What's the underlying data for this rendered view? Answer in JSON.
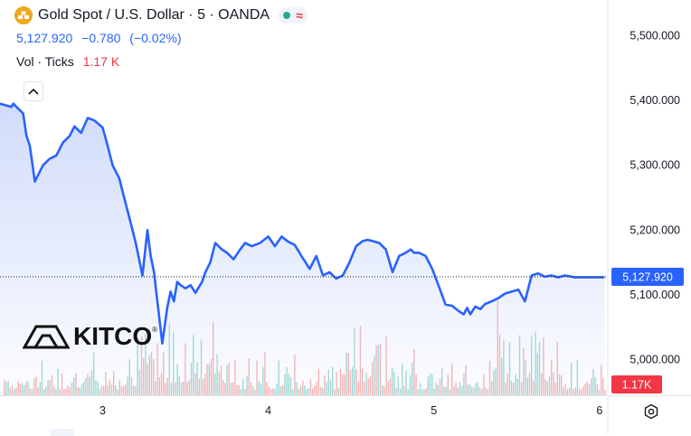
{
  "header": {
    "title": "Gold Spot / U.S. Dollar · 5 · OANDA",
    "icon": "gold-bars-icon",
    "status_icons": [
      "market-open-dot-icon",
      "delayed-wave-icon"
    ],
    "price": "5,127.920",
    "change": "−0.780",
    "change_pct": "(−0.02%)",
    "volume_label": "Vol · Ticks",
    "volume_value": "1.17 K"
  },
  "logo": {
    "text": "KITCO",
    "registered": "®"
  },
  "colors": {
    "line": "#2962ff",
    "area_top": "#c9d6fa",
    "vol_up": "#26a69a",
    "vol_down": "#ef5350",
    "price_tag": "#2962ff",
    "vol_tag": "#f23645"
  },
  "chart_data": {
    "type": "line",
    "title": "Gold Spot / U.S. Dollar · 5 · OANDA",
    "xlabel": "",
    "ylabel": "",
    "x_ticks": [
      "3",
      "4",
      "5",
      "6"
    ],
    "y_ticks": [
      "5,500.000",
      "5,400.000",
      "5,300.000",
      "5,200.000",
      "5,100.000",
      "5,000.000"
    ],
    "ylim": [
      4945,
      5555
    ],
    "xlim": [
      2.38,
      6.05
    ],
    "last_price_label": "5,127.920",
    "last_price": 5127.92,
    "volume_label": "1.17K",
    "grid": false,
    "series": [
      {
        "x": [
          2.38,
          2.45,
          2.46,
          2.52,
          2.54,
          2.56,
          2.59,
          2.64,
          2.68,
          2.72,
          2.76,
          2.8,
          2.83,
          2.87,
          2.91,
          2.95,
          3.0,
          3.03,
          3.06,
          3.1,
          3.13,
          3.17,
          3.2,
          3.24,
          3.27,
          3.29,
          3.31,
          3.33,
          3.36,
          3.39,
          3.41,
          3.43,
          3.45,
          3.47,
          3.5,
          3.53,
          3.56,
          3.6,
          3.62,
          3.65,
          3.68,
          3.72,
          3.75,
          3.79,
          3.83,
          3.86,
          3.9,
          3.95,
          4.0,
          4.04,
          4.08,
          4.12,
          4.16,
          4.2,
          4.25,
          4.29,
          4.33,
          4.37,
          4.41,
          4.45,
          4.49,
          4.53,
          4.57,
          4.6,
          4.63,
          4.67,
          4.71,
          4.75,
          4.79,
          4.83,
          4.86,
          4.88,
          4.91,
          4.95,
          4.99,
          5.03,
          5.07,
          5.11,
          5.15,
          5.18,
          5.2,
          5.22,
          5.25,
          5.28,
          5.31,
          5.35,
          5.39,
          5.43,
          5.47,
          5.51,
          5.55,
          5.59,
          5.63,
          5.67,
          5.71,
          5.75,
          5.79,
          5.83,
          5.85,
          5.88,
          5.91,
          5.94,
          5.97,
          6.0,
          6.03
        ],
        "y": [
          5395,
          5390,
          5395,
          5380,
          5345,
          5330,
          5275,
          5300,
          5310,
          5315,
          5335,
          5345,
          5360,
          5350,
          5373,
          5369,
          5358,
          5330,
          5300,
          5280,
          5250,
          5210,
          5180,
          5130,
          5200,
          5160,
          5135,
          5090,
          5025,
          5080,
          5105,
          5090,
          5120,
          5115,
          5110,
          5115,
          5103,
          5120,
          5135,
          5150,
          5180,
          5170,
          5165,
          5155,
          5170,
          5180,
          5175,
          5180,
          5190,
          5175,
          5190,
          5182,
          5177,
          5160,
          5140,
          5160,
          5130,
          5135,
          5125,
          5130,
          5150,
          5175,
          5183,
          5185,
          5183,
          5180,
          5170,
          5135,
          5160,
          5165,
          5170,
          5165,
          5165,
          5160,
          5140,
          5113,
          5085,
          5083,
          5075,
          5070,
          5080,
          5070,
          5082,
          5078,
          5086,
          5090,
          5095,
          5102,
          5105,
          5108,
          5090,
          5130,
          5133,
          5128,
          5130,
          5127,
          5130,
          5128,
          5127,
          5127,
          5127,
          5127,
          5127,
          5127,
          5127
        ]
      }
    ]
  }
}
